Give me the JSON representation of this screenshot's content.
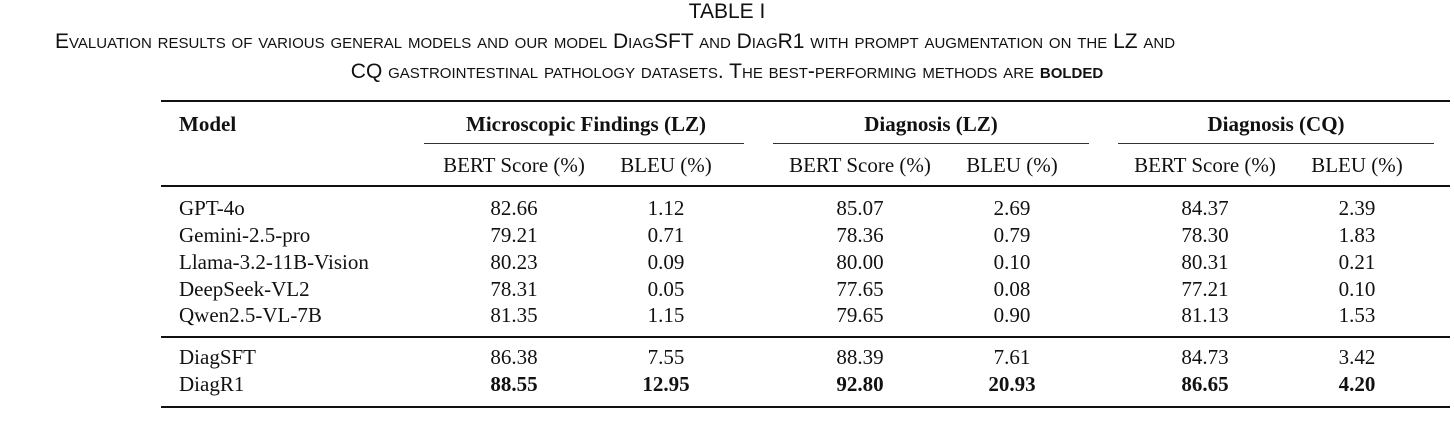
{
  "caption": {
    "title": "TABLE I",
    "line1": "Evaluation results of various general models and our model DiagSFT and DiagR1 with prompt augmentation on the LZ and",
    "line2_prefix": "CQ gastrointestinal pathology datasets. The best-performing methods are ",
    "line2_bold": "bolded"
  },
  "table": {
    "model_header": "Model",
    "groups": [
      {
        "name": "Microscopic Findings (LZ)"
      },
      {
        "name": "Diagnosis (LZ)"
      },
      {
        "name": "Diagnosis (CQ)"
      }
    ],
    "subheaders": [
      "BERT Score (%)",
      "BLEU (%)",
      "BERT Score (%)",
      "BLEU (%)",
      "BERT Score (%)",
      "BLEU (%)"
    ],
    "rows": [
      {
        "model": "GPT-4o",
        "values": [
          "82.66",
          "1.12",
          "85.07",
          "2.69",
          "84.37",
          "2.39"
        ]
      },
      {
        "model": "Gemini-2.5-pro",
        "values": [
          "79.21",
          "0.71",
          "78.36",
          "0.79",
          "78.30",
          "1.83"
        ]
      },
      {
        "model": "Llama-3.2-11B-Vision",
        "values": [
          "80.23",
          "0.09",
          "80.00",
          "0.10",
          "80.31",
          "0.21"
        ]
      },
      {
        "model": "DeepSeek-VL2",
        "values": [
          "78.31",
          "0.05",
          "77.65",
          "0.08",
          "77.21",
          "0.10"
        ]
      },
      {
        "model": "Qwen2.5-VL-7B",
        "values": [
          "81.35",
          "1.15",
          "79.65",
          "0.90",
          "81.13",
          "1.53"
        ]
      },
      {
        "model": "DiagSFT",
        "values": [
          "86.38",
          "7.55",
          "88.39",
          "7.61",
          "84.73",
          "3.42"
        ]
      },
      {
        "model": "DiagR1",
        "values": [
          "88.55",
          "12.95",
          "92.80",
          "20.93",
          "86.65",
          "4.20"
        ]
      }
    ]
  }
}
